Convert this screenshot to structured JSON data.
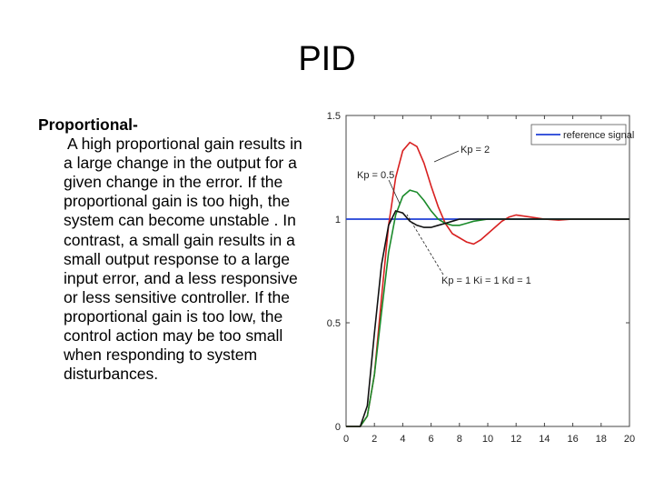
{
  "slide": {
    "title": "PID",
    "heading": "Proportional-",
    "paragraph": "A high proportional gain results in a large change in the output for a given change in the error. If the proportional gain is too high, the system can become unstable . In contrast, a small gain results in a small output response to a large input error, and a less responsive or less sensitive controller. If the proportional gain is too low, the control action may be too small when responding to system disturbances."
  },
  "chart_data": {
    "type": "line",
    "title": "",
    "xlabel": "",
    "ylabel": "",
    "xlim": [
      0,
      20
    ],
    "ylim": [
      0,
      1.5
    ],
    "x_ticks": [
      "0",
      "2",
      "4",
      "6",
      "8",
      "10",
      "12",
      "14",
      "16",
      "18",
      "20"
    ],
    "y_ticks": [
      "0",
      "0.5",
      "1",
      "1.5"
    ],
    "grid": false,
    "legend": {
      "position": "top-right",
      "entries": [
        "reference signal"
      ]
    },
    "annotations": [
      "Kp = 2",
      "Kp = 0.5",
      "Kp = 1 Ki = 1 Kd = 1"
    ],
    "series": [
      {
        "name": "reference signal",
        "color": "#1f3fd6",
        "x": [
          0,
          1,
          1,
          20
        ],
        "y": [
          1,
          1,
          1,
          1
        ]
      },
      {
        "color": "#d82020",
        "x": [
          0,
          1,
          1.5,
          2,
          2.5,
          3,
          3.5,
          4,
          4.5,
          5,
          5.5,
          6,
          6.5,
          7,
          7.5,
          8,
          8.5,
          9,
          9.5,
          10,
          10.5,
          11,
          11.5,
          12,
          13,
          14,
          15,
          16,
          17,
          18,
          19,
          20
        ],
        "y": [
          0,
          0,
          0.05,
          0.25,
          0.62,
          0.97,
          1.2,
          1.33,
          1.37,
          1.35,
          1.27,
          1.16,
          1.06,
          0.98,
          0.93,
          0.91,
          0.89,
          0.88,
          0.9,
          0.93,
          0.96,
          0.99,
          1.01,
          1.02,
          1.01,
          1.0,
          0.995,
          1.0,
          1.0,
          1.0,
          1.0,
          1.0
        ]
      },
      {
        "color": "#1a8a2a",
        "x": [
          0,
          1,
          1.5,
          2,
          2.5,
          3,
          3.5,
          4,
          4.5,
          5,
          5.5,
          6,
          6.5,
          7,
          7.5,
          8,
          8.5,
          9,
          10,
          11,
          12,
          13,
          14,
          16,
          18,
          20
        ],
        "y": [
          0,
          0,
          0.05,
          0.25,
          0.55,
          0.84,
          1.02,
          1.11,
          1.14,
          1.13,
          1.09,
          1.04,
          1.0,
          0.98,
          0.97,
          0.97,
          0.98,
          0.99,
          1.0,
          1.0,
          1.0,
          1.0,
          1.0,
          1.0,
          1.0,
          1.0
        ]
      },
      {
        "color": "#111111",
        "x": [
          0,
          1,
          1.5,
          2,
          2.5,
          3,
          3.5,
          4,
          4.5,
          5,
          5.5,
          6,
          6.5,
          7,
          7.5,
          8,
          9,
          10,
          12,
          14,
          16,
          18,
          20
        ],
        "y": [
          0,
          0,
          0.1,
          0.45,
          0.78,
          0.97,
          1.04,
          1.03,
          0.99,
          0.97,
          0.96,
          0.96,
          0.97,
          0.98,
          0.99,
          1.0,
          1.0,
          1.0,
          1.0,
          1.0,
          1.0,
          1.0,
          1.0
        ]
      }
    ]
  }
}
